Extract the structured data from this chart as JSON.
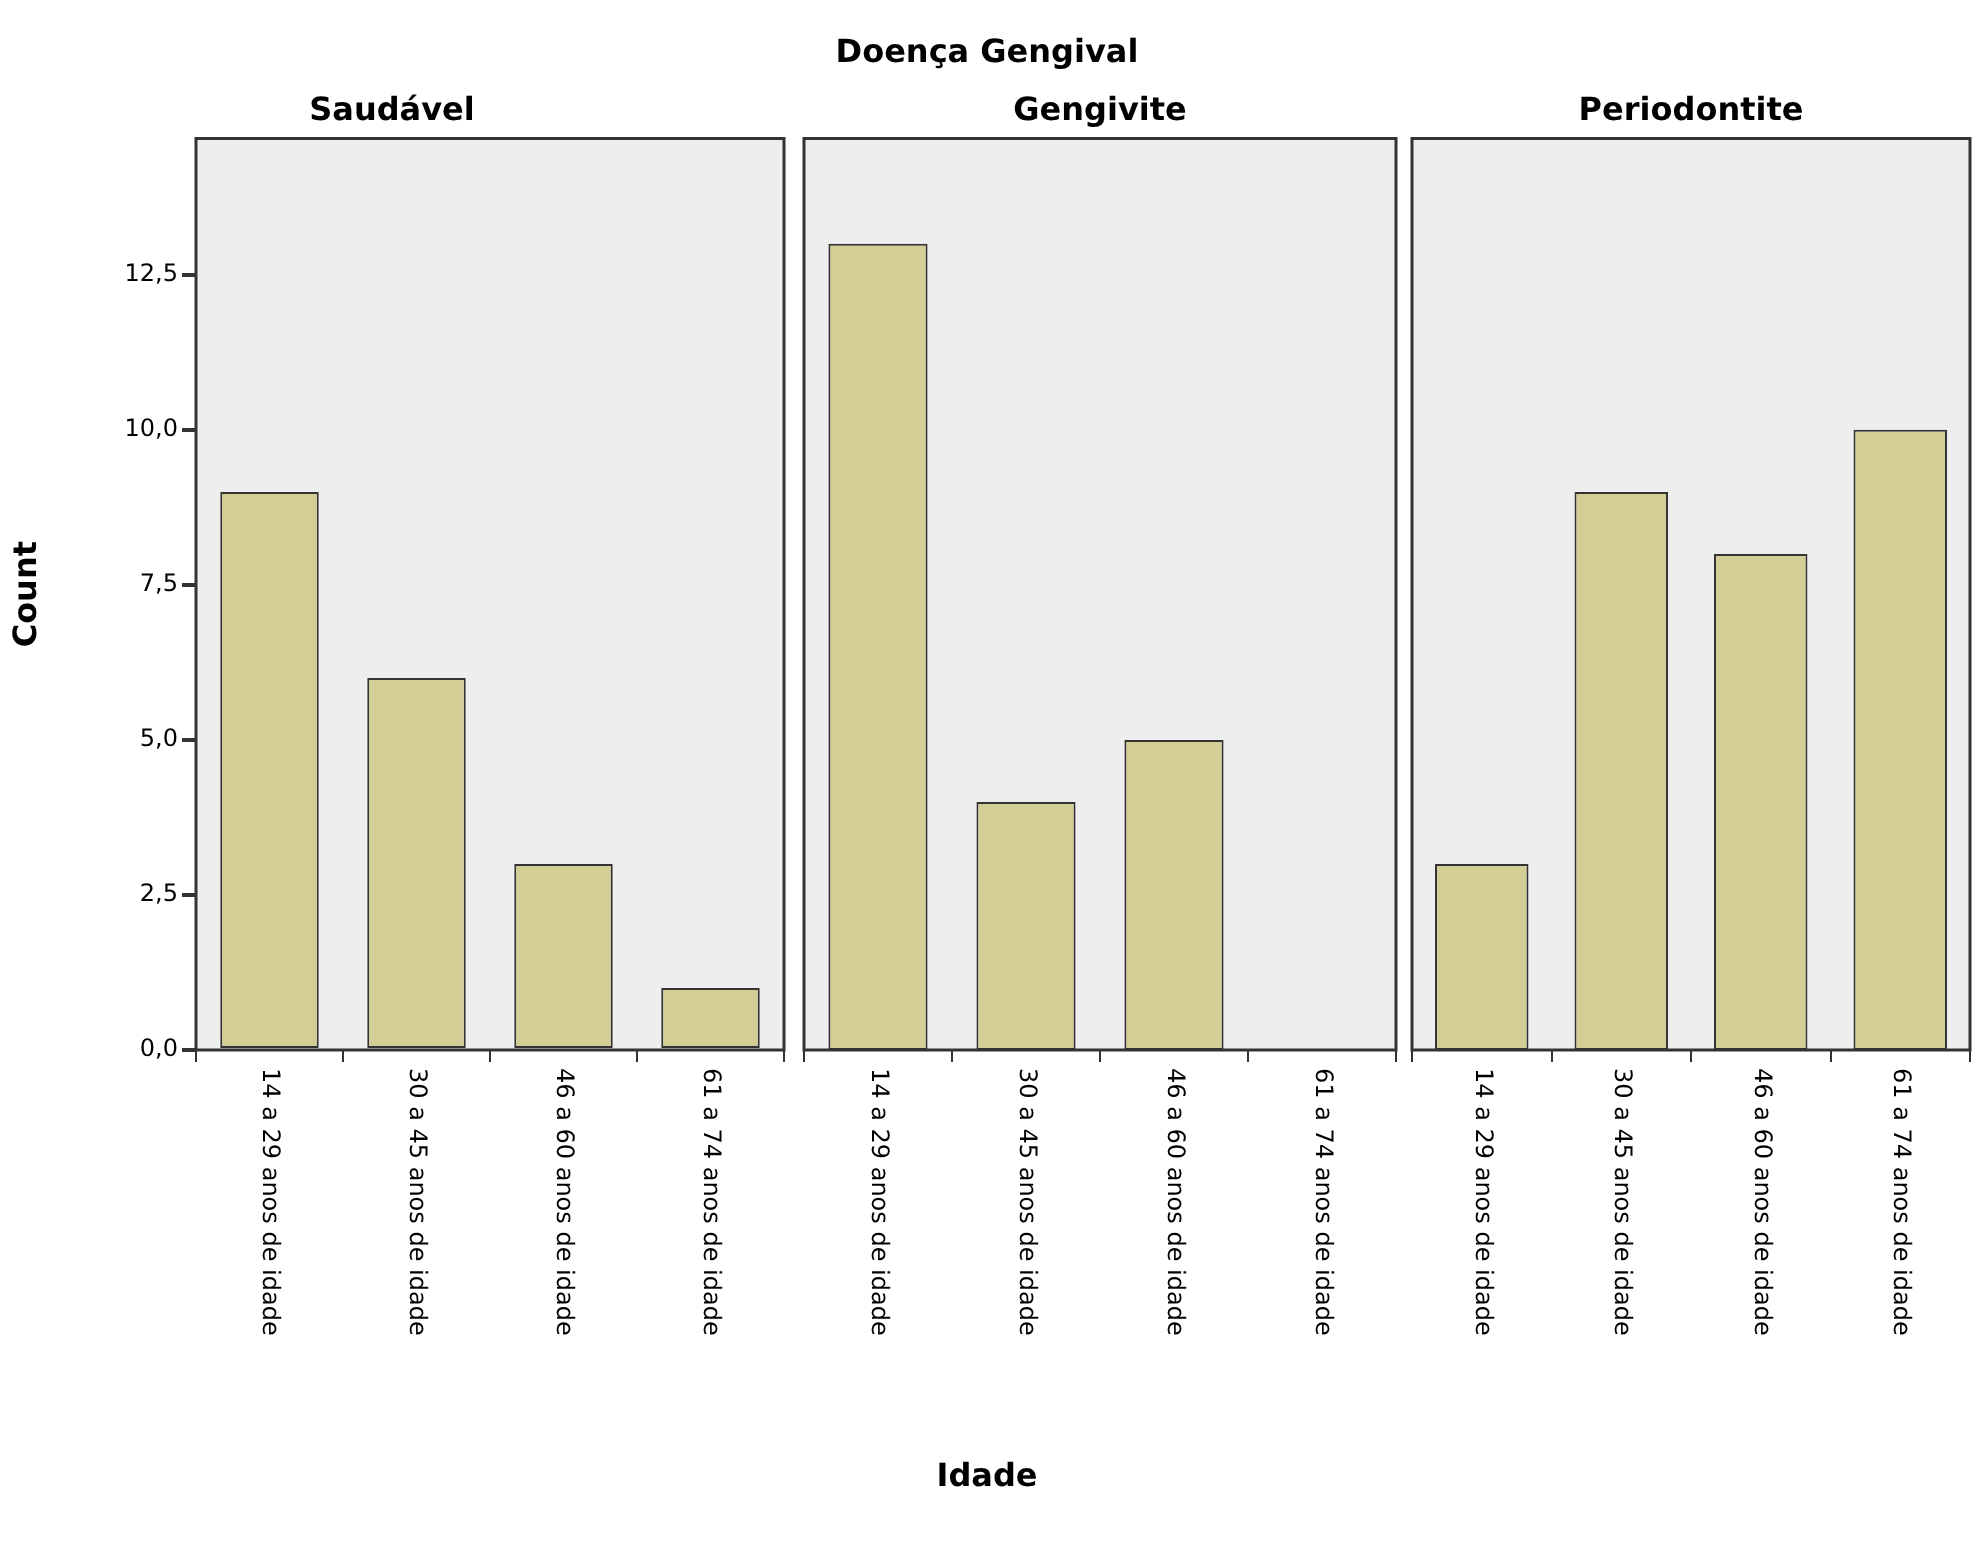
{
  "chart_data": [
    {
      "type": "bar",
      "title": "Saudável",
      "ylabel": "Count",
      "categories": [
        "14 a 29 anos de idade",
        "30 a 45 anos de idade",
        "46 a 60 anos de idade",
        "61 a 74 anos de idade"
      ],
      "values": [
        9,
        6,
        3,
        1
      ],
      "color": "#d3cd96",
      "ylim": [
        0,
        14.7
      ],
      "yticks": [
        {
          "value": 0,
          "label": "0,0"
        },
        {
          "value": 2.5,
          "label": "2,5"
        },
        {
          "value": 5,
          "label": "5,0"
        },
        {
          "value": 7.5,
          "label": "7,5"
        },
        {
          "value": 10,
          "label": "10,0"
        },
        {
          "value": 12.5,
          "label": "12,5"
        }
      ],
      "grid": false
    },
    {
      "type": "bar",
      "title": "Gengivite",
      "xlabel": "Idade",
      "annotations": [
        "Doença Gengival"
      ],
      "categories": [
        "14 a 29 anos de idade",
        "30 a 45 anos de idade",
        "46 a 60 anos de idade",
        "61 a 74 anos de idade"
      ],
      "values": [
        13,
        4,
        5,
        0
      ],
      "color": "#d3cd96",
      "ylim": [
        0,
        14.7
      ],
      "tick_labels": "x",
      "grid": false
    },
    {
      "type": "bar",
      "title": "Periodontite",
      "categories": [
        "14 a 29 anos de idade",
        "30 a 45 anos de idade",
        "46 a 60 anos de idade",
        "61 a 74 anos de idade"
      ],
      "values": [
        3,
        9,
        8,
        10
      ],
      "color": "#d3cd96",
      "ylim": [
        0,
        14.7
      ],
      "tick_labels": "x",
      "grid": false
    }
  ]
}
